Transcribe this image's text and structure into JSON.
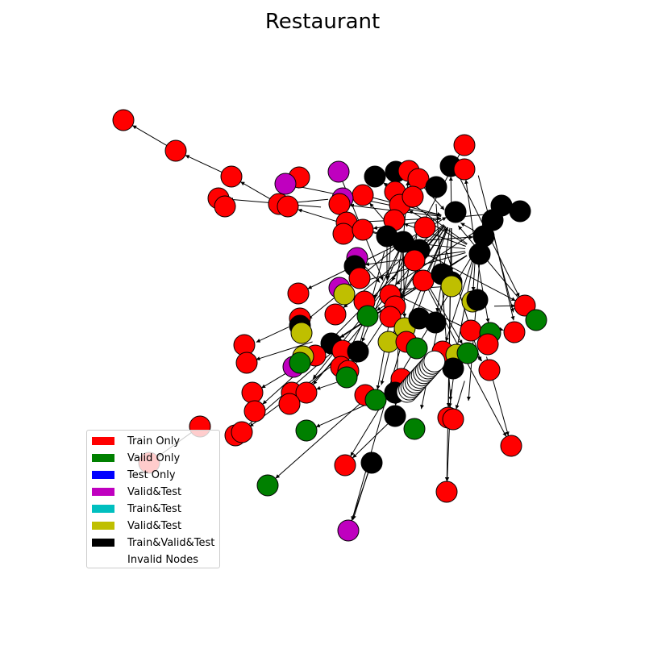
{
  "title": "Restaurant",
  "legend": [
    {
      "label": "Train Only",
      "color": "#ff0000"
    },
    {
      "label": "Valid Only",
      "color": "#008000"
    },
    {
      "label": "Test Only",
      "color": "#0000ff"
    },
    {
      "label": "Valid&Test",
      "color": "#bf00bf"
    },
    {
      "label": "Train&Test",
      "color": "#00bfbf"
    },
    {
      "label": "Valid&Test",
      "color": "#bfbf00"
    },
    {
      "label": "Train&Valid&Test",
      "color": "#000000"
    },
    {
      "label": "Invalid Nodes",
      "color": "#ffffff"
    }
  ],
  "node_categories": {
    "train_only": "#ff0000",
    "valid_only": "#008000",
    "valid_test": "#bf00bf",
    "valid_test_alt": "#bfbf00",
    "train_valid_test": "#000000",
    "invalid": "#ffffff"
  }
}
